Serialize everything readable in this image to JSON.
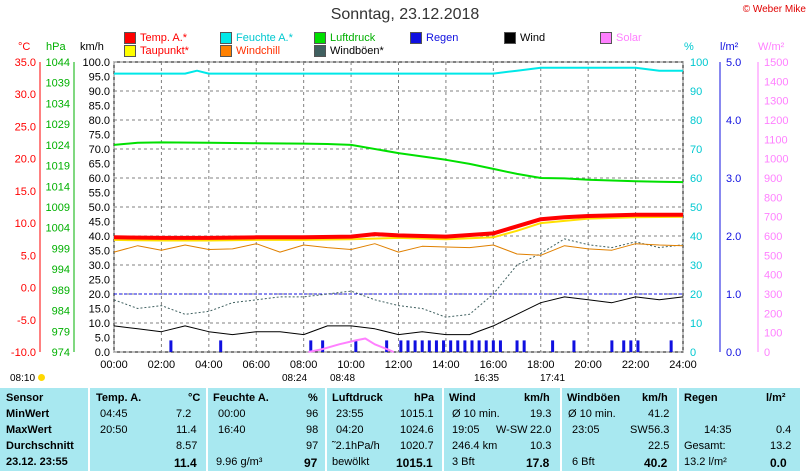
{
  "title": "Sonntag, 23.12.2018",
  "copyright": "© Weber Mike",
  "legend": [
    {
      "label": "Temp. A.*",
      "color": "#ff0000",
      "text_color": "#ff0000"
    },
    {
      "label": "Taupunkt*",
      "color": "#ffff00",
      "text_color": "#ff0000"
    },
    {
      "label": "Feuchte A.*",
      "color": "#00e8e8",
      "text_color": "#00d0d0"
    },
    {
      "label": "Windchill",
      "color": "#ff8000",
      "text_color": "#ff3000"
    },
    {
      "label": "Luftdruck",
      "color": "#00e000",
      "text_color": "#00b000"
    },
    {
      "label": "Windböen*",
      "color": "#406060",
      "text_color": "#000000"
    },
    {
      "label": "Regen",
      "color": "#1010e0",
      "text_color": "#1010e0"
    },
    {
      "label": "Wind",
      "color": "#000000",
      "text_color": "#000000"
    },
    {
      "label": "Solar",
      "color": "#ff80ff",
      "text_color": "#ff80ff"
    }
  ],
  "axis_heads": {
    "temp": "°C",
    "pressure": "hPa",
    "wind": "km/h",
    "humidity": "%",
    "rain": "l/m²",
    "solar": "W/m²"
  },
  "colors": {
    "temp": "#ff0000",
    "pressure": "#00b000",
    "humidity": "#00c8d0",
    "rain": "#1010e0",
    "solar": "#ff80ff",
    "grid": "#808080",
    "table_bg": "#a8e8f0"
  },
  "chart_data": {
    "type": "line",
    "x_unit": "time of day",
    "x_ticks": [
      "00:00",
      "02:00",
      "04:00",
      "06:00",
      "08:00",
      "10:00",
      "12:00",
      "14:00",
      "16:00",
      "18:00",
      "20:00",
      "22:00",
      "24:00"
    ],
    "axes": {
      "temp_c": {
        "ticks": [
          "35.0",
          "30.0",
          "25.0",
          "20.0",
          "15.0",
          "10.0",
          "5.0",
          "0.0",
          "-5.0",
          "-10.0"
        ],
        "range": [
          -10,
          35
        ]
      },
      "pressure_hpa": {
        "ticks": [
          "1044",
          "1039",
          "1034",
          "1029",
          "1024",
          "1019",
          "1014",
          "1009",
          "1004",
          "999",
          "994",
          "989",
          "984",
          "979",
          "974"
        ],
        "range": [
          974,
          1044
        ]
      },
      "wind_kmh": {
        "ticks": [
          "100.0",
          "95.0",
          "90.0",
          "85.0",
          "80.0",
          "75.0",
          "70.0",
          "65.0",
          "60.0",
          "55.0",
          "50.0",
          "45.0",
          "40.0",
          "35.0",
          "30.0",
          "25.0",
          "20.0",
          "15.0",
          "10.0",
          "5.0",
          "0.0"
        ],
        "range": [
          0,
          100
        ]
      },
      "humidity_pct": {
        "ticks": [
          "100",
          "90",
          "80",
          "70",
          "60",
          "50",
          "40",
          "30",
          "20",
          "10",
          "0"
        ],
        "range": [
          0,
          100
        ]
      },
      "rain_lm2": {
        "ticks": [
          "5.0",
          "4.0",
          "3.0",
          "2.0",
          "1.0",
          "0.0"
        ],
        "range": [
          0,
          5
        ]
      },
      "solar_wm2": {
        "ticks": [
          "1500",
          "1400",
          "1300",
          "1200",
          "1100",
          "1000",
          "900",
          "800",
          "700",
          "600",
          "500",
          "400",
          "300",
          "200",
          "100",
          "0"
        ],
        "range": [
          0,
          1500
        ]
      }
    },
    "series": [
      {
        "name": "Temp. A.",
        "axis": "temp_c",
        "x_hours": [
          0,
          2,
          4,
          6,
          8,
          10,
          11,
          12,
          14,
          16,
          17,
          18,
          19,
          20,
          21,
          22,
          23,
          24
        ],
        "values": [
          7.8,
          7.7,
          7.7,
          7.8,
          7.8,
          7.9,
          8.3,
          8.1,
          7.9,
          8.4,
          9.5,
          10.6,
          10.9,
          11.1,
          11.2,
          11.3,
          11.3,
          11.3
        ]
      },
      {
        "name": "Taupunkt",
        "axis": "temp_c",
        "x_hours": [
          0,
          2,
          4,
          6,
          8,
          10,
          12,
          14,
          16,
          17,
          18,
          20,
          22,
          24
        ],
        "values": [
          7.4,
          7.3,
          7.3,
          7.4,
          7.4,
          7.5,
          7.7,
          7.5,
          7.8,
          8.8,
          10.0,
          10.7,
          10.9,
          11.0
        ]
      },
      {
        "name": "Feuchte A.",
        "axis": "humidity_pct",
        "x_hours": [
          0,
          2,
          3,
          3.5,
          4,
          6,
          8,
          10,
          12,
          14,
          16,
          17,
          18,
          20,
          22,
          23,
          24
        ],
        "values": [
          96,
          96,
          96,
          97,
          96,
          96,
          96,
          96,
          96,
          96,
          96,
          97,
          98,
          98,
          98,
          97,
          97
        ]
      },
      {
        "name": "Luftdruck",
        "axis": "pressure_hpa",
        "x_hours": [
          0,
          1,
          2,
          4,
          6,
          8,
          9,
          10,
          12,
          14,
          15,
          16,
          17,
          18,
          19,
          20,
          21,
          22,
          23,
          24
        ],
        "values": [
          1024,
          1024.5,
          1024.6,
          1024.5,
          1024.4,
          1024.3,
          1024.2,
          1024.0,
          1022.0,
          1020.4,
          1019.4,
          1018.2,
          1017.0,
          1016.0,
          1015.9,
          1015.6,
          1015.4,
          1015.2,
          1015.1,
          1015.0
        ]
      },
      {
        "name": "Windchill",
        "axis": "temp_c",
        "x_hours": [
          0,
          1,
          2,
          3,
          4,
          5,
          6,
          7,
          8,
          9,
          10,
          11,
          12,
          13,
          14,
          15,
          16,
          17,
          18,
          19,
          20,
          21,
          22,
          23,
          24
        ],
        "values": [
          5.5,
          6.5,
          5.8,
          6.6,
          5.9,
          6.0,
          6.8,
          5.5,
          6.6,
          6.2,
          5.9,
          6.8,
          5.5,
          6.4,
          6.3,
          6.2,
          6.6,
          5.2,
          5.0,
          6.5,
          6.0,
          5.8,
          6.8,
          6.6,
          6.5
        ]
      },
      {
        "name": "Windböen",
        "axis": "wind_kmh",
        "x_hours": [
          0,
          1,
          2,
          3,
          4,
          5,
          6,
          7,
          8,
          9,
          10,
          11,
          12,
          13,
          14,
          15,
          16,
          17,
          18,
          19,
          20,
          21,
          22,
          23,
          24
        ],
        "values": [
          18,
          15,
          16,
          13,
          14,
          17,
          18,
          19,
          19,
          20,
          21,
          18,
          16,
          15,
          12,
          13,
          20,
          30,
          34,
          39,
          37,
          36,
          38,
          36,
          37
        ]
      },
      {
        "name": "Wind",
        "axis": "wind_kmh",
        "x_hours": [
          0,
          1,
          2,
          3,
          4,
          5,
          6,
          7,
          8,
          9,
          10,
          11,
          12,
          13,
          14,
          15,
          16,
          17,
          18,
          19,
          20,
          21,
          22,
          23,
          24
        ],
        "values": [
          9,
          8,
          7,
          9,
          7,
          6,
          7,
          7,
          6,
          9,
          9,
          8,
          6,
          7,
          6,
          6,
          9,
          13,
          17,
          19,
          18,
          17,
          19,
          18,
          19
        ]
      },
      {
        "name": "Solar",
        "axis": "solar_wm2",
        "x_hours": [
          8.2,
          8.8,
          9.5,
          10.2,
          10.6,
          11.0,
          11.4,
          11.8
        ],
        "values": [
          0,
          15,
          40,
          60,
          70,
          40,
          20,
          0
        ]
      }
    ],
    "rain_hours": [
      2.4,
      4.5,
      8.3,
      8.8,
      10.2,
      11.5,
      12.1,
      12.4,
      12.7,
      13.0,
      13.3,
      13.6,
      13.9,
      14.2,
      14.5,
      14.8,
      15.1,
      15.4,
      15.7,
      16.0,
      16.3,
      17.0,
      17.3,
      18.5,
      19.4,
      21.0,
      21.5,
      21.8,
      22.1,
      23.5
    ],
    "rain_heights_lm2": [
      0.2,
      0.2,
      0.2,
      0.2,
      0.2,
      0.2,
      0.2,
      0.2,
      0.2,
      0.2,
      0.2,
      0.2,
      0.2,
      0.2,
      0.2,
      0.2,
      0.2,
      0.2,
      0.2,
      0.2,
      0.2,
      0.2,
      0.2,
      0.2,
      0.2,
      0.2,
      0.2,
      0.2,
      0.2,
      0.2
    ]
  },
  "markers": {
    "sunrise_left": "08:10",
    "sunrise": "08:24",
    "moon_rise": "08:48",
    "sunset": "16:35",
    "moon_set": "17:41"
  },
  "table": {
    "headers": {
      "sensor": "Sensor",
      "temp": "Temp. A.",
      "temp_unit": "°C",
      "humidity": "Feuchte A.",
      "humidity_unit": "%",
      "pressure": "Luftdruck",
      "pressure_unit": "hPa",
      "wind": "Wind",
      "wind_unit": "km/h",
      "gusts": "Windböen",
      "gusts_unit": "km/h",
      "rain": "Regen",
      "rain_unit": "l/m²"
    },
    "rows": [
      {
        "label": "MinWert",
        "temp_time": "04:45",
        "temp_val": "7.2",
        "hum_time": "00:00",
        "hum_val": "96",
        "press_time": "23:55",
        "press_val": "1015.1",
        "wind_label": "Ø 10 min.",
        "wind_val": "19.3",
        "gust_label": "Ø 10 min.",
        "gust_val": "41.2",
        "rain_label": "",
        "rain_val": ""
      },
      {
        "label": "MaxWert",
        "temp_time": "20:50",
        "temp_val": "11.4",
        "hum_time": "16:40",
        "hum_val": "98",
        "press_time": "04:20",
        "press_val": "1024.6",
        "wind_label": "19:05",
        "wind_dir": "W-SW",
        "wind_val": "22.0",
        "gust_label": "23:05",
        "gust_dir": "SW",
        "gust_val": "56.3",
        "rain_label": "14:35",
        "rain_val": "0.4"
      },
      {
        "label": "Durchschnitt",
        "temp_time": "",
        "temp_val": "8.57",
        "hum_time": "",
        "hum_val": "97",
        "press_time": "˜2.1hPa/h",
        "press_val": "1020.7",
        "wind_label": "246.4 km",
        "wind_val": "10.3",
        "gust_label": "",
        "gust_val": "22.5",
        "rain_label": "Gesamt:",
        "rain_val": "13.2"
      },
      {
        "label": "23.12. 23:55",
        "temp_time": "",
        "temp_val": "11.4",
        "hum_time": "9.96 g/m³",
        "hum_val": "97",
        "press_time": "bewölkt",
        "press_val": "1015.1",
        "wind_label": "3 Bft",
        "wind_val": "17.8",
        "gust_label": "6 Bft",
        "gust_val": "40.2",
        "rain_label": "13.2 l/m²",
        "rain_val": "0.0"
      }
    ]
  }
}
